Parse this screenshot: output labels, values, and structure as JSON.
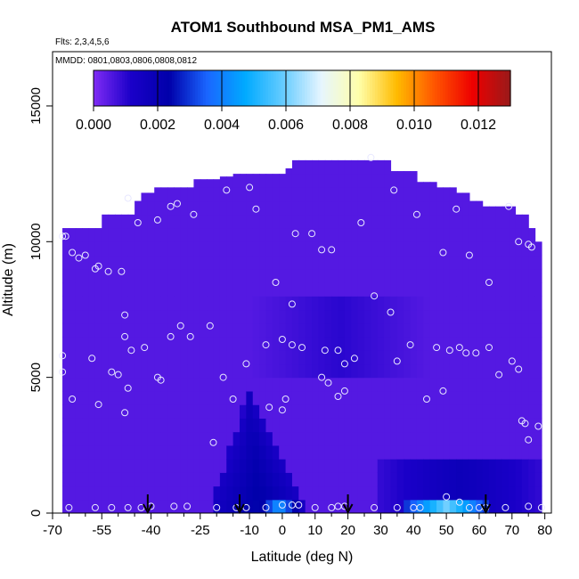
{
  "chart_data": {
    "type": "heatmap",
    "title": "ATOM1 Southbound MSA_PM1_AMS",
    "subtitle_flights": "Flts: 2,3,4,5,6",
    "subtitle_dates": "MMDD: 0801,0803,0806,0808,0812",
    "xlabel": "Latitude (deg N)",
    "ylabel": "Altitude (m)",
    "xlim": [
      -70,
      82
    ],
    "ylim": [
      0,
      17000
    ],
    "x_ticks": [
      -70,
      -55,
      -40,
      -25,
      -10,
      0,
      10,
      20,
      30,
      40,
      50,
      60,
      70,
      80
    ],
    "x_tick_labels": [
      "-70",
      "-55",
      "-40",
      "-25",
      "-10",
      "0",
      "10",
      "20",
      "30",
      "40",
      "50",
      "60",
      "70",
      "80"
    ],
    "x_minor_ticks": [
      -65,
      -60,
      -50,
      -45,
      -35,
      -30,
      -20,
      -15,
      -5,
      5,
      15,
      25,
      35,
      45,
      55,
      65,
      75
    ],
    "y_ticks": [
      0,
      5000,
      10000,
      15000
    ],
    "y_tick_labels": [
      "0",
      "5000",
      "10000",
      "15000"
    ],
    "colorbar": {
      "min": 0.0,
      "max": 0.013,
      "ticks": [
        0.0,
        0.002,
        0.004,
        0.006,
        0.008,
        0.01,
        0.012
      ],
      "tick_labels": [
        "0.000",
        "0.002",
        "0.004",
        "0.006",
        "0.008",
        "0.010",
        "0.012"
      ],
      "colors": [
        "#7f2cf5",
        "#1a00c8",
        "#0000aa",
        "#1a66ff",
        "#00aaff",
        "#66ccff",
        "#e6f5ff",
        "#ffffaa",
        "#ffbb00",
        "#ff5500",
        "#ee0000",
        "#991a1a"
      ]
    },
    "profile_top": [
      [
        -67,
        10500
      ],
      [
        -58,
        10500
      ],
      [
        -56,
        11000
      ],
      [
        -48,
        11000
      ],
      [
        -46,
        11500
      ],
      [
        -44,
        11800
      ],
      [
        -39,
        12000
      ],
      [
        -28,
        12300
      ],
      [
        -20,
        12400
      ],
      [
        -15,
        12500
      ],
      [
        0,
        12700
      ],
      [
        2,
        13000
      ],
      [
        30,
        13000
      ],
      [
        33,
        12600
      ],
      [
        40,
        12200
      ],
      [
        47,
        12000
      ],
      [
        53,
        11800
      ],
      [
        56,
        11500
      ],
      [
        61,
        11300
      ],
      [
        70,
        11000
      ],
      [
        74,
        10500
      ],
      [
        77,
        10000
      ],
      [
        79,
        9800
      ]
    ],
    "x_range_data": [
      -67,
      79
    ],
    "background_value": 0.0005,
    "features": [
      {
        "name": "tropical-low-plume",
        "apex": [
          -10,
          4500
        ],
        "base_left": -22,
        "base_right": 8,
        "value": 0.0025
      },
      {
        "name": "tropical-surface-max",
        "lat_range": [
          -6,
          4
        ],
        "alt_range": [
          0,
          500
        ],
        "value": 0.0045
      },
      {
        "name": "north-boundary-layer",
        "lat_range": [
          30,
          79
        ],
        "alt_range": [
          0,
          2000
        ],
        "value": 0.0018
      },
      {
        "name": "north-surface-max",
        "lat_range": [
          38,
          62
        ],
        "alt_range": [
          0,
          400
        ],
        "value": 0.006
      },
      {
        "name": "mid-troposphere-band",
        "lat_range": [
          -10,
          45
        ],
        "alt_range": [
          5000,
          8000
        ],
        "value": 0.001
      }
    ],
    "observations": [
      [
        -67,
        10200
      ],
      [
        -66,
        10200
      ],
      [
        -64,
        9600
      ],
      [
        -62,
        9400
      ],
      [
        -60,
        9500
      ],
      [
        -57,
        9000
      ],
      [
        -56,
        9100
      ],
      [
        -53,
        8900
      ],
      [
        -49,
        8900
      ],
      [
        -47,
        11600
      ],
      [
        -44,
        10700
      ],
      [
        -38,
        10800
      ],
      [
        -34,
        11300
      ],
      [
        -32,
        11400
      ],
      [
        -27,
        11000
      ],
      [
        -17,
        11900
      ],
      [
        -10,
        12000
      ],
      [
        -8,
        11200
      ],
      [
        4,
        10300
      ],
      [
        9,
        10300
      ],
      [
        12,
        9700
      ],
      [
        15,
        9700
      ],
      [
        24,
        10700
      ],
      [
        27,
        13100
      ],
      [
        34,
        11900
      ],
      [
        41,
        11000
      ],
      [
        49,
        9600
      ],
      [
        53,
        11200
      ],
      [
        57,
        9500
      ],
      [
        63,
        8500
      ],
      [
        69,
        11300
      ],
      [
        72,
        10000
      ],
      [
        75,
        9900
      ],
      [
        76,
        9800
      ],
      [
        -67,
        5800
      ],
      [
        -67,
        5200
      ],
      [
        -58,
        5700
      ],
      [
        -52,
        5200
      ],
      [
        -48,
        7300
      ],
      [
        -48,
        6500
      ],
      [
        -46,
        6000
      ],
      [
        -42,
        6100
      ],
      [
        -38,
        5000
      ],
      [
        -37,
        4900
      ],
      [
        -34,
        6500
      ],
      [
        -31,
        6900
      ],
      [
        -28,
        6500
      ],
      [
        -22,
        6900
      ],
      [
        -18,
        5000
      ],
      [
        -11,
        5500
      ],
      [
        -5,
        6200
      ],
      [
        -2,
        8500
      ],
      [
        3,
        7700
      ],
      [
        0,
        6400
      ],
      [
        3,
        6200
      ],
      [
        6,
        6100
      ],
      [
        12,
        5000
      ],
      [
        13,
        6000
      ],
      [
        17,
        6000
      ],
      [
        19,
        5500
      ],
      [
        14,
        4800
      ],
      [
        17,
        4300
      ],
      [
        19,
        4500
      ],
      [
        22,
        5700
      ],
      [
        28,
        8000
      ],
      [
        33,
        7400
      ],
      [
        35,
        5600
      ],
      [
        39,
        6200
      ],
      [
        44,
        4200
      ],
      [
        47,
        6100
      ],
      [
        49,
        4500
      ],
      [
        51,
        6000
      ],
      [
        54,
        6100
      ],
      [
        56,
        5900
      ],
      [
        59,
        5900
      ],
      [
        63,
        6100
      ],
      [
        66,
        5100
      ],
      [
        70,
        5600
      ],
      [
        72,
        5300
      ],
      [
        73,
        3400
      ],
      [
        74,
        3300
      ],
      [
        78,
        3200
      ],
      [
        75,
        2700
      ],
      [
        -64,
        4200
      ],
      [
        -56,
        4000
      ],
      [
        -50,
        5100
      ],
      [
        -48,
        3700
      ],
      [
        -47,
        4600
      ],
      [
        -21,
        2600
      ],
      [
        -15,
        4200
      ],
      [
        -4,
        3900
      ],
      [
        0,
        3800
      ],
      [
        1,
        4200
      ],
      [
        -65,
        200
      ],
      [
        -57,
        200
      ],
      [
        -52,
        200
      ],
      [
        -47,
        200
      ],
      [
        -43,
        200
      ],
      [
        -40,
        250
      ],
      [
        -33,
        250
      ],
      [
        -29,
        250
      ],
      [
        -20,
        200
      ],
      [
        -14,
        200
      ],
      [
        -11,
        200
      ],
      [
        -5,
        200
      ],
      [
        0,
        300
      ],
      [
        3,
        300
      ],
      [
        5,
        300
      ],
      [
        10,
        200
      ],
      [
        15,
        200
      ],
      [
        17,
        250
      ],
      [
        19,
        250
      ],
      [
        28,
        200
      ],
      [
        35,
        200
      ],
      [
        40,
        200
      ],
      [
        42,
        200
      ],
      [
        50,
        600
      ],
      [
        54,
        400
      ],
      [
        57,
        200
      ],
      [
        60,
        200
      ],
      [
        62,
        200
      ],
      [
        68,
        200
      ],
      [
        75,
        250
      ],
      [
        79,
        200
      ]
    ],
    "flight_arrows_lat": [
      -41,
      -13,
      20,
      62
    ]
  }
}
